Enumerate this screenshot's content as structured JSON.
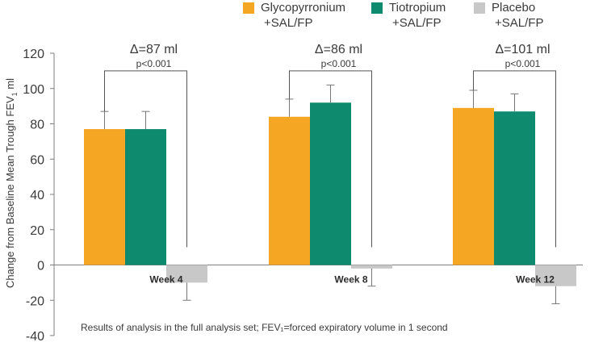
{
  "colors": {
    "glycopyrronium": "#F5A623",
    "tiotropium": "#0E8A6F",
    "placebo": "#C8C8C8",
    "axis": "#7f7f7f",
    "text": "#3a3a3a"
  },
  "legend": [
    {
      "line1": "Glycopyrronium",
      "line2": "+SAL/FP"
    },
    {
      "line1": "Tiotropium",
      "line2": "+SAL/FP"
    },
    {
      "line1": "Placebo",
      "line2": "+SAL/FP"
    }
  ],
  "ylabel_main": "Change from Baseline Mean Trough FEV",
  "ylabel_sub": "1",
  "ylabel_unit": " ml",
  "footnote": "Results of analysis in the full analysis set; FEV₁=forced expiratory volume in 1 second",
  "chart_data": {
    "type": "bar",
    "title": "",
    "xlabel": "",
    "ylabel": "Change from Baseline Mean Trough FEV1 ml",
    "ylim": [
      -40,
      120
    ],
    "yticks": [
      -40,
      -20,
      0,
      20,
      40,
      60,
      80,
      100,
      120
    ],
    "categories": [
      "Week 4",
      "Week 8",
      "Week 12"
    ],
    "series": [
      {
        "name": "Glycopyrronium +SAL/FP",
        "values": [
          77,
          84,
          89
        ],
        "error": [
          10,
          10,
          10
        ]
      },
      {
        "name": "Tiotropium +SAL/FP",
        "values": [
          77,
          92,
          87
        ],
        "error": [
          10,
          10,
          10
        ]
      },
      {
        "name": "Placebo +SAL/FP",
        "values": [
          -10,
          -2,
          -12
        ],
        "error": [
          10,
          10,
          10
        ]
      }
    ],
    "annotations": [
      {
        "delta": "Δ=87 ml",
        "p": "p<0.001"
      },
      {
        "delta": "Δ=86 ml",
        "p": "p<0.001"
      },
      {
        "delta": "Δ=101 ml",
        "p": "p<0.001"
      }
    ]
  }
}
